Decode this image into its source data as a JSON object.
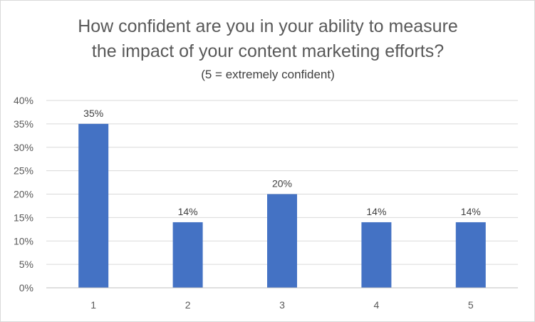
{
  "chart_data": {
    "type": "bar",
    "title_lines": [
      "How confident are you in your ability to measure",
      "the impact of your content marketing efforts?"
    ],
    "subtitle": "(5 = extremely confident)",
    "categories": [
      "1",
      "2",
      "3",
      "4",
      "5"
    ],
    "values": [
      35,
      14,
      20,
      14,
      14
    ],
    "data_labels": [
      "35%",
      "14%",
      "20%",
      "14%",
      "14%"
    ],
    "y_ticks": [
      0,
      5,
      10,
      15,
      20,
      25,
      30,
      35,
      40
    ],
    "y_tick_labels": [
      "0%",
      "5%",
      "10%",
      "15%",
      "20%",
      "25%",
      "30%",
      "35%",
      "40%"
    ],
    "ylim": [
      0,
      40
    ],
    "xlabel": "",
    "ylabel": "",
    "grid": true,
    "legend": "none",
    "colors": {
      "bar": "#4472C4",
      "grid": "#d9d9d9",
      "axis": "#bfbfbf"
    }
  }
}
